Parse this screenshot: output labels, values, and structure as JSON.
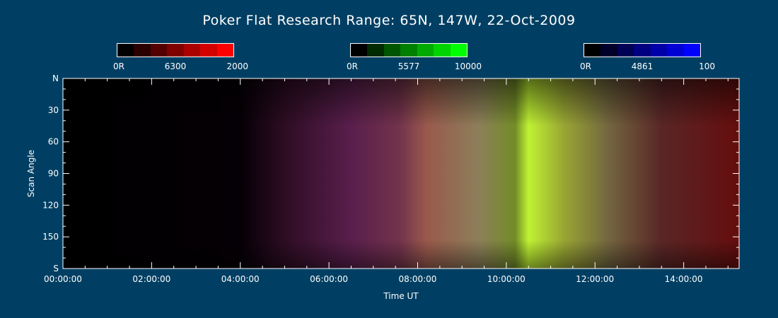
{
  "title": "Poker Flat Research Range: 65N, 147W, 22-Oct-2009",
  "colorbars": [
    {
      "channel": "6300",
      "min_label": "0R",
      "max_label": "2000",
      "colors": [
        "#000000",
        "#2a0000",
        "#550000",
        "#800000",
        "#aa0000",
        "#d40000",
        "#ff0000"
      ]
    },
    {
      "channel": "5577",
      "min_label": "0R",
      "max_label": "10000",
      "colors": [
        "#000000",
        "#002a00",
        "#005500",
        "#008000",
        "#00aa00",
        "#00d400",
        "#00ff00"
      ]
    },
    {
      "channel": "4861",
      "min_label": "0R",
      "max_label": "100",
      "colors": [
        "#000000",
        "#00002a",
        "#000055",
        "#000080",
        "#0000aa",
        "#0000d4",
        "#0000ff"
      ]
    }
  ],
  "chart_data": {
    "type": "heatmap",
    "title": "Poker Flat Research Range: 65N, 147W, 22-Oct-2009",
    "xlabel": "Time UT",
    "ylabel": "Scan Angle",
    "x_ticks": [
      "00:00:00",
      "02:00:00",
      "04:00:00",
      "06:00:00",
      "08:00:00",
      "10:00:00",
      "12:00:00",
      "14:00:00"
    ],
    "x_tick_hours": [
      0,
      2,
      4,
      6,
      8,
      10,
      12,
      14
    ],
    "xlim": [
      0,
      15.25
    ],
    "y_ticks": [
      "N",
      "30",
      "60",
      "90",
      "120",
      "150",
      "S"
    ],
    "y_tick_values": [
      0,
      30,
      60,
      90,
      120,
      150,
      180
    ],
    "ylim": [
      0,
      180
    ],
    "channels": [
      "6300",
      "5577",
      "4861"
    ],
    "time_profile": [
      {
        "t": 0.0,
        "red": 0.0,
        "green": 0.0,
        "blue": 0.0
      },
      {
        "t": 4.0,
        "red": 0.02,
        "green": 0.0,
        "blue": 0.02
      },
      {
        "t": 5.0,
        "red": 0.18,
        "green": 0.05,
        "blue": 0.14
      },
      {
        "t": 6.5,
        "red": 0.35,
        "green": 0.12,
        "blue": 0.3
      },
      {
        "t": 7.6,
        "red": 0.45,
        "green": 0.2,
        "blue": 0.3
      },
      {
        "t": 8.2,
        "red": 0.6,
        "green": 0.35,
        "blue": 0.3
      },
      {
        "t": 9.4,
        "red": 0.55,
        "green": 0.5,
        "blue": 0.35
      },
      {
        "t": 10.2,
        "red": 0.45,
        "green": 0.55,
        "blue": 0.15
      },
      {
        "t": 10.5,
        "red": 0.75,
        "green": 0.95,
        "blue": 0.2
      },
      {
        "t": 11.3,
        "red": 0.6,
        "green": 0.65,
        "blue": 0.2
      },
      {
        "t": 12.3,
        "red": 0.45,
        "green": 0.4,
        "blue": 0.25
      },
      {
        "t": 13.5,
        "red": 0.35,
        "green": 0.15,
        "blue": 0.15
      },
      {
        "t": 15.25,
        "red": 0.4,
        "green": 0.05,
        "blue": 0.05
      }
    ]
  }
}
